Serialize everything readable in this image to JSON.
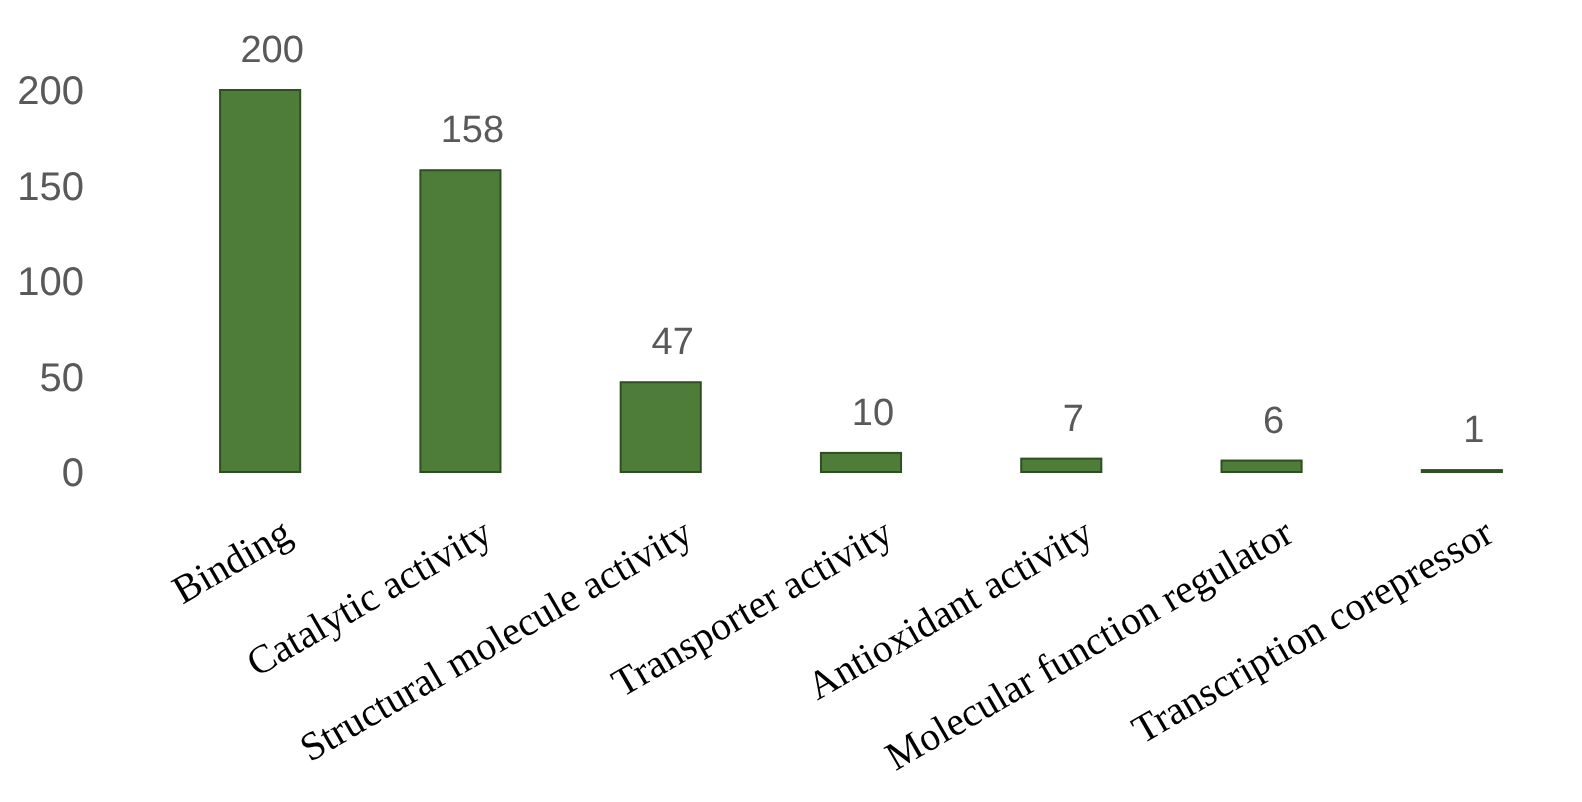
{
  "chart_data": {
    "type": "bar",
    "categories": [
      "Binding",
      "Catalytic activity",
      "Structural molecule activity",
      "Transporter activity",
      "Antioxidant activity",
      "Molecular function regulator",
      "Transcription corepressor"
    ],
    "values": [
      200,
      158,
      47,
      10,
      7,
      6,
      1
    ],
    "color": "#4e7d3a",
    "ylim": [
      0,
      200
    ],
    "yticks": [
      0,
      50,
      100,
      150,
      200
    ],
    "data_labels": true
  }
}
